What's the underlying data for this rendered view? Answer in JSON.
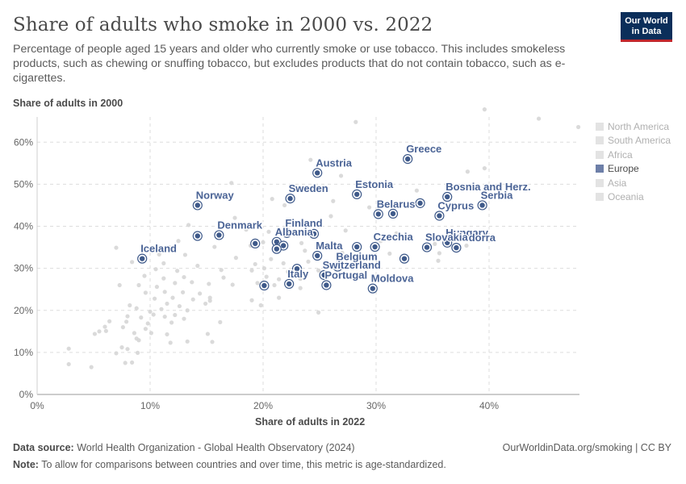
{
  "header": {
    "title": "Share of adults who smoke in 2000 vs. 2022",
    "subtitle": "Percentage of people aged 15 years and older who currently smoke or use tobacco. This includes smokeless products, such as chewing or snuffing tobacco, but excludes products that do not contain tobacco, such as e-cigarettes.",
    "logo_line1": "Our World",
    "logo_line2": "in Data"
  },
  "axes": {
    "ylabel": "Share of adults in 2000",
    "xlabel": "Share of adults in 2022"
  },
  "legend": [
    {
      "label": "North America",
      "active": false
    },
    {
      "label": "South America",
      "active": false
    },
    {
      "label": "Africa",
      "active": false
    },
    {
      "label": "Europe",
      "active": true
    },
    {
      "label": "Asia",
      "active": false
    },
    {
      "label": "Oceania",
      "active": false
    }
  ],
  "footer": {
    "source_label": "Data source:",
    "source_text": "World Health Organization - Global Health Observatory (2024)",
    "note_label": "Note:",
    "note_text": "To allow for comparisons between countries and over time, this metric is age-standardized.",
    "right_text": "OurWorldinData.org/smoking | CC BY"
  },
  "colors": {
    "europe": "#3f5a8a",
    "europe_label": "#4b6496",
    "other": "#d6d6d6",
    "grid": "#dddddd"
  },
  "chart_data": {
    "type": "scatter",
    "xlabel": "Share of adults in 2022",
    "ylabel": "Share of adults in 2000",
    "xlim": [
      0,
      48
    ],
    "ylim": [
      0,
      66
    ],
    "xticks": [
      0,
      10,
      20,
      30,
      40
    ],
    "yticks": [
      0,
      10,
      20,
      30,
      40,
      50,
      60
    ],
    "tick_format": "%",
    "grid": true,
    "legend_position": "right",
    "series": [
      {
        "name": "Europe",
        "points": [
          {
            "label": "Greece",
            "x": 32.8,
            "y": 56.0
          },
          {
            "label": "Austria",
            "x": 24.8,
            "y": 52.7
          },
          {
            "label": "Estonia",
            "x": 28.3,
            "y": 47.6
          },
          {
            "label": "Sweden",
            "x": 22.4,
            "y": 46.6
          },
          {
            "label": "Bosnia and Herz.",
            "x": 36.3,
            "y": 47.0
          },
          {
            "label": "Serbia",
            "x": 39.4,
            "y": 45.0
          },
          {
            "label": "Norway",
            "x": 14.2,
            "y": 45.0
          },
          {
            "label": "Belarus",
            "x": 30.2,
            "y": 42.9
          },
          {
            "label": "",
            "x": 31.5,
            "y": 43.0
          },
          {
            "label": "",
            "x": 33.9,
            "y": 45.5
          },
          {
            "label": "Cyprus",
            "x": 35.6,
            "y": 42.5
          },
          {
            "label": "Denmark",
            "x": 16.1,
            "y": 37.9
          },
          {
            "label": "",
            "x": 14.2,
            "y": 37.7
          },
          {
            "label": "Finland",
            "x": 22.1,
            "y": 38.4
          },
          {
            "label": "",
            "x": 24.5,
            "y": 38.2
          },
          {
            "label": "Albania",
            "x": 21.2,
            "y": 36.3
          },
          {
            "label": "",
            "x": 19.3,
            "y": 35.9
          },
          {
            "label": "",
            "x": 21.8,
            "y": 35.4
          },
          {
            "label": "",
            "x": 21.2,
            "y": 34.6
          },
          {
            "label": "Hungary",
            "x": 36.3,
            "y": 36.1
          },
          {
            "label": "Czechia",
            "x": 29.9,
            "y": 35.1
          },
          {
            "label": "Andorra",
            "x": 37.1,
            "y": 34.9
          },
          {
            "label": "Slovakia",
            "x": 34.5,
            "y": 35.0
          },
          {
            "label": "",
            "x": 28.3,
            "y": 35.1
          },
          {
            "label": "Malta",
            "x": 24.8,
            "y": 33.0
          },
          {
            "label": "Belgium",
            "x": 26.6,
            "y": 30.4
          },
          {
            "label": "",
            "x": 32.5,
            "y": 32.3
          },
          {
            "label": "Iceland",
            "x": 9.3,
            "y": 32.3
          },
          {
            "label": "Switzerland",
            "x": 25.4,
            "y": 28.4
          },
          {
            "label": "",
            "x": 23.0,
            "y": 29.9
          },
          {
            "label": "Italy",
            "x": 22.3,
            "y": 26.3
          },
          {
            "label": "",
            "x": 20.1,
            "y": 25.9
          },
          {
            "label": "Portugal",
            "x": 25.6,
            "y": 26.0
          },
          {
            "label": "Moldova",
            "x": 29.7,
            "y": 25.2
          }
        ]
      },
      {
        "name": "Other regions",
        "points": [
          {
            "x": 39.6,
            "y": 67.8
          },
          {
            "x": 44.4,
            "y": 65.6
          },
          {
            "x": 47.9,
            "y": 63.6
          },
          {
            "x": 28.2,
            "y": 64.8
          },
          {
            "x": 39.6,
            "y": 53.8
          },
          {
            "x": 38.1,
            "y": 53.0
          },
          {
            "x": 24.2,
            "y": 55.8
          },
          {
            "x": 26.9,
            "y": 52.0
          },
          {
            "x": 17.2,
            "y": 50.3
          },
          {
            "x": 33.6,
            "y": 48.5
          },
          {
            "x": 26.2,
            "y": 46.0
          },
          {
            "x": 20.8,
            "y": 46.5
          },
          {
            "x": 21.9,
            "y": 45.0
          },
          {
            "x": 29.4,
            "y": 44.5
          },
          {
            "x": 17.5,
            "y": 42.0
          },
          {
            "x": 26.0,
            "y": 42.4
          },
          {
            "x": 13.4,
            "y": 40.3
          },
          {
            "x": 25.0,
            "y": 40.1
          },
          {
            "x": 18.5,
            "y": 39.2
          },
          {
            "x": 27.3,
            "y": 39.0
          },
          {
            "x": 20.5,
            "y": 38.7
          },
          {
            "x": 31.8,
            "y": 38.3
          },
          {
            "x": 12.5,
            "y": 36.5
          },
          {
            "x": 20.0,
            "y": 36.2
          },
          {
            "x": 23.4,
            "y": 36.0
          },
          {
            "x": 26.0,
            "y": 35.6
          },
          {
            "x": 30.4,
            "y": 36.5
          },
          {
            "x": 35.2,
            "y": 35.8
          },
          {
            "x": 38.0,
            "y": 35.4
          },
          {
            "x": 7.0,
            "y": 34.9
          },
          {
            "x": 11.7,
            "y": 35.0
          },
          {
            "x": 15.7,
            "y": 35.1
          },
          {
            "x": 18.9,
            "y": 35.4
          },
          {
            "x": 23.7,
            "y": 34.2
          },
          {
            "x": 27.0,
            "y": 33.7
          },
          {
            "x": 31.2,
            "y": 33.5
          },
          {
            "x": 35.6,
            "y": 33.6
          },
          {
            "x": 10.8,
            "y": 33.3
          },
          {
            "x": 13.1,
            "y": 33.2
          },
          {
            "x": 17.6,
            "y": 32.5
          },
          {
            "x": 20.7,
            "y": 32.2
          },
          {
            "x": 19.3,
            "y": 31.0
          },
          {
            "x": 21.8,
            "y": 31.2
          },
          {
            "x": 24.0,
            "y": 31.6
          },
          {
            "x": 26.9,
            "y": 31.0
          },
          {
            "x": 30.2,
            "y": 31.5
          },
          {
            "x": 35.5,
            "y": 31.8
          },
          {
            "x": 8.4,
            "y": 31.5
          },
          {
            "x": 11.2,
            "y": 31.2
          },
          {
            "x": 14.2,
            "y": 30.6
          },
          {
            "x": 10.5,
            "y": 29.8
          },
          {
            "x": 12.4,
            "y": 29.4
          },
          {
            "x": 16.3,
            "y": 29.6
          },
          {
            "x": 19.0,
            "y": 29.5
          },
          {
            "x": 20.1,
            "y": 30.0
          },
          {
            "x": 22.2,
            "y": 29.2
          },
          {
            "x": 24.9,
            "y": 29.5
          },
          {
            "x": 9.5,
            "y": 28.2
          },
          {
            "x": 11.2,
            "y": 27.6
          },
          {
            "x": 13.0,
            "y": 27.9
          },
          {
            "x": 16.5,
            "y": 27.8
          },
          {
            "x": 20.3,
            "y": 28.0
          },
          {
            "x": 21.4,
            "y": 27.4
          },
          {
            "x": 23.3,
            "y": 27.5
          },
          {
            "x": 7.3,
            "y": 26.0
          },
          {
            "x": 9.0,
            "y": 26.0
          },
          {
            "x": 10.6,
            "y": 25.6
          },
          {
            "x": 12.2,
            "y": 26.5
          },
          {
            "x": 13.7,
            "y": 26.7
          },
          {
            "x": 15.2,
            "y": 26.3
          },
          {
            "x": 17.3,
            "y": 26.1
          },
          {
            "x": 19.5,
            "y": 26.5
          },
          {
            "x": 21.0,
            "y": 26.0
          },
          {
            "x": 23.3,
            "y": 25.3
          },
          {
            "x": 9.6,
            "y": 24.2
          },
          {
            "x": 11.3,
            "y": 24.4
          },
          {
            "x": 12.9,
            "y": 24.3
          },
          {
            "x": 14.4,
            "y": 24.0
          },
          {
            "x": 10.4,
            "y": 22.8
          },
          {
            "x": 12.0,
            "y": 23.0
          },
          {
            "x": 13.8,
            "y": 22.6
          },
          {
            "x": 15.3,
            "y": 23.0
          },
          {
            "x": 19.0,
            "y": 22.4
          },
          {
            "x": 21.4,
            "y": 23.0
          },
          {
            "x": 8.2,
            "y": 21.2
          },
          {
            "x": 8.8,
            "y": 20.5
          },
          {
            "x": 11.5,
            "y": 21.6
          },
          {
            "x": 12.6,
            "y": 21.0
          },
          {
            "x": 14.9,
            "y": 21.6
          },
          {
            "x": 15.3,
            "y": 22.3
          },
          {
            "x": 19.8,
            "y": 21.2
          },
          {
            "x": 10.0,
            "y": 19.7
          },
          {
            "x": 11.0,
            "y": 20.3
          },
          {
            "x": 13.3,
            "y": 20.0
          },
          {
            "x": 24.9,
            "y": 19.5
          },
          {
            "x": 8.0,
            "y": 18.6
          },
          {
            "x": 9.2,
            "y": 18.3
          },
          {
            "x": 10.3,
            "y": 19.0
          },
          {
            "x": 11.3,
            "y": 18.5
          },
          {
            "x": 12.2,
            "y": 18.9
          },
          {
            "x": 13.0,
            "y": 18.0
          },
          {
            "x": 6.4,
            "y": 17.4
          },
          {
            "x": 7.9,
            "y": 17.3
          },
          {
            "x": 9.8,
            "y": 16.9
          },
          {
            "x": 11.9,
            "y": 17.1
          },
          {
            "x": 16.2,
            "y": 17.2
          },
          {
            "x": 6.0,
            "y": 16.1
          },
          {
            "x": 7.6,
            "y": 16.0
          },
          {
            "x": 9.6,
            "y": 15.6
          },
          {
            "x": 6.1,
            "y": 15.1
          },
          {
            "x": 8.6,
            "y": 14.6
          },
          {
            "x": 10.1,
            "y": 14.6
          },
          {
            "x": 11.5,
            "y": 14.3
          },
          {
            "x": 15.1,
            "y": 14.4
          },
          {
            "x": 5.1,
            "y": 14.4
          },
          {
            "x": 5.5,
            "y": 15.0
          },
          {
            "x": 8.8,
            "y": 13.3
          },
          {
            "x": 9.0,
            "y": 12.9
          },
          {
            "x": 11.8,
            "y": 12.3
          },
          {
            "x": 13.3,
            "y": 12.6
          },
          {
            "x": 15.5,
            "y": 12.5
          },
          {
            "x": 7.5,
            "y": 11.2
          },
          {
            "x": 8.0,
            "y": 10.8
          },
          {
            "x": 2.8,
            "y": 10.9
          },
          {
            "x": 7.0,
            "y": 9.8
          },
          {
            "x": 8.9,
            "y": 9.9
          },
          {
            "x": 7.8,
            "y": 7.5
          },
          {
            "x": 8.4,
            "y": 7.6
          },
          {
            "x": 2.8,
            "y": 7.2
          },
          {
            "x": 4.8,
            "y": 6.5
          }
        ]
      }
    ]
  }
}
